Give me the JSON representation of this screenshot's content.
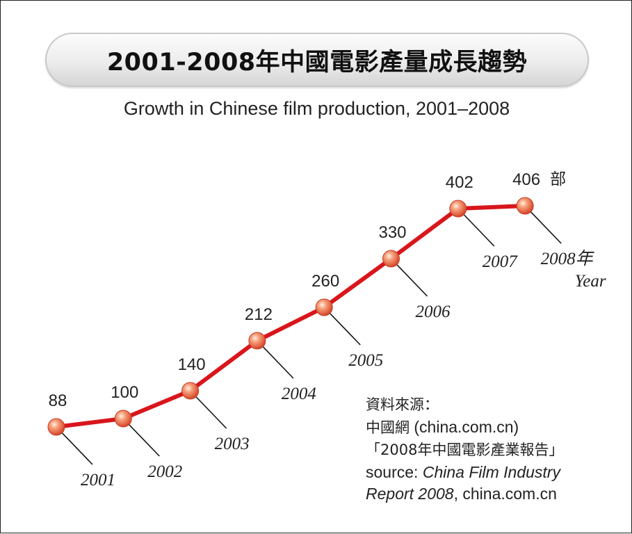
{
  "header": {
    "title": "2001-2008年中國電影產量成長趨勢",
    "subtitle": "Growth in Chinese film production, 2001–2008"
  },
  "chart_data": {
    "type": "line",
    "title": "2001-2008年中國電影產量成長趨勢",
    "subtitle": "Growth in Chinese film production, 2001–2008",
    "x": [
      2001,
      2002,
      2003,
      2004,
      2005,
      2006,
      2007,
      2008
    ],
    "x_labels": [
      "2001",
      "2002",
      "2003",
      "2004",
      "2005",
      "2006",
      "2007",
      "2008年"
    ],
    "x_unit_label": "Year",
    "series": [
      {
        "values": [
          88,
          100,
          140,
          212,
          260,
          330,
          402,
          406
        ]
      }
    ],
    "value_labels": [
      "88",
      "100",
      "140",
      "212",
      "260",
      "330",
      "402",
      "406"
    ],
    "unit": "部",
    "line_color": "#d8161c",
    "marker_color": "#f08060",
    "grid": false
  },
  "source": {
    "line1": "資料來源：",
    "line2_cjk": "中國網",
    "line2_rest": " (china.com.cn)",
    "line3": "「2008年中國電影產業報告」",
    "line4_prefix": "source: ",
    "line4_italic": "China Film Industry",
    "line5_italic": "Report 2008",
    "line5_rest": ", china.com.cn"
  }
}
